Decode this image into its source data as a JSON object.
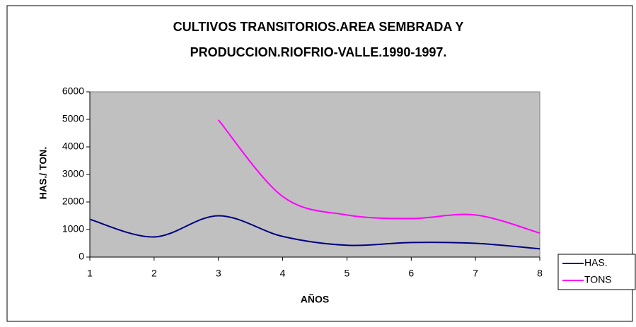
{
  "chart_data": {
    "type": "line",
    "title": [
      "CULTIVOS TRANSITORIOS.AREA SEMBRADA Y",
      "PRODUCCION.RIOFRIO-VALLE.1990-1997."
    ],
    "x_label": "AÑOS",
    "y_label": "HAS./ TON.",
    "x": [
      1,
      2,
      3,
      4,
      5,
      6,
      7,
      8
    ],
    "series": [
      {
        "name": "HAS.",
        "color": "#000080",
        "values": [
          1370,
          730,
          1500,
          750,
          430,
          530,
          500,
          300
        ]
      },
      {
        "name": "TONS",
        "color": "#ff00ff",
        "values": [
          null,
          null,
          4980,
          2200,
          1530,
          1400,
          1530,
          870
        ]
      }
    ],
    "xlim": [
      1,
      8
    ],
    "xticks": [
      1,
      2,
      3,
      4,
      5,
      6,
      7,
      8
    ],
    "ylim": [
      0,
      6000
    ],
    "yticks": [
      0,
      1000,
      2000,
      3000,
      4000,
      5000,
      6000
    ],
    "grid": false,
    "legend": "right",
    "plot_background": "#c0c0c0"
  }
}
